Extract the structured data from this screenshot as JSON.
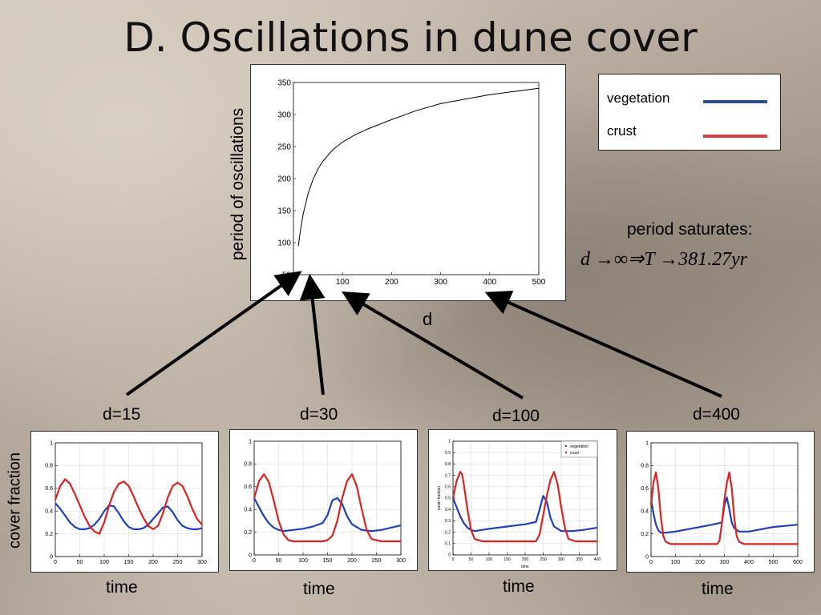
{
  "title": "D. Oscillations in dune cover",
  "colors": {
    "vegetation": "#1f3fbf",
    "crust": "#dd2222",
    "main_curve": "#000000"
  },
  "legend": {
    "items": [
      {
        "label": "vegetation",
        "color": "#2a4a9a"
      },
      {
        "label": "crust",
        "color": "#cc4444"
      }
    ]
  },
  "annotation": {
    "line1": "period saturates:",
    "line2": "d →∞⇒T →381.27yr"
  },
  "main_chart": {
    "type": "line",
    "xlabel": "d",
    "ylabel": "period of oscillations",
    "xlim": [
      0,
      500
    ],
    "ylim": [
      50,
      350
    ],
    "xticks": [
      100,
      200,
      300,
      400,
      500
    ],
    "yticks": [
      50,
      100,
      150,
      200,
      250,
      300,
      350
    ],
    "x": [
      10,
      15,
      20,
      30,
      40,
      50,
      60,
      80,
      100,
      125,
      150,
      200,
      250,
      300,
      350,
      400,
      450,
      500
    ],
    "y": [
      95,
      123,
      145,
      177,
      199,
      215,
      227,
      245,
      257,
      268,
      277,
      292,
      306,
      317,
      324,
      331,
      336,
      341
    ]
  },
  "panels": [
    {
      "label": "d=15",
      "xlabel": "time",
      "xlim": [
        0,
        300
      ],
      "xticks": [
        0,
        50,
        100,
        150,
        200,
        250,
        300
      ],
      "yticks": [
        0,
        0.2,
        0.4,
        0.6,
        0.8,
        1
      ],
      "small_legend": false,
      "series": [
        {
          "name": "vegetation",
          "x": [
            0,
            10,
            20,
            30,
            40,
            50,
            60,
            70,
            80,
            90,
            100,
            110,
            120,
            130,
            140,
            150,
            160,
            170,
            180,
            190,
            200,
            210,
            220,
            230,
            240,
            250,
            260,
            270,
            280,
            290,
            300
          ],
          "y": [
            0.47,
            0.42,
            0.36,
            0.3,
            0.26,
            0.24,
            0.24,
            0.25,
            0.28,
            0.33,
            0.4,
            0.45,
            0.44,
            0.38,
            0.31,
            0.26,
            0.24,
            0.24,
            0.25,
            0.28,
            0.33,
            0.38,
            0.43,
            0.44,
            0.39,
            0.32,
            0.27,
            0.25,
            0.24,
            0.24,
            0.25
          ]
        },
        {
          "name": "crust",
          "x": [
            0,
            10,
            20,
            30,
            40,
            50,
            60,
            70,
            80,
            90,
            100,
            110,
            120,
            130,
            140,
            150,
            160,
            170,
            180,
            190,
            200,
            210,
            220,
            230,
            240,
            250,
            260,
            270,
            280,
            290,
            300
          ],
          "y": [
            0.5,
            0.62,
            0.68,
            0.64,
            0.55,
            0.45,
            0.35,
            0.27,
            0.22,
            0.2,
            0.3,
            0.45,
            0.57,
            0.64,
            0.66,
            0.62,
            0.53,
            0.43,
            0.34,
            0.27,
            0.24,
            0.27,
            0.38,
            0.52,
            0.62,
            0.65,
            0.62,
            0.53,
            0.42,
            0.33,
            0.28
          ]
        }
      ]
    },
    {
      "label": "d=30",
      "xlabel": "time",
      "xlim": [
        0,
        300
      ],
      "xticks": [
        0,
        50,
        100,
        150,
        200,
        250,
        300
      ],
      "yticks": [
        0,
        0.2,
        0.4,
        0.6,
        0.8,
        1
      ],
      "small_legend": false,
      "series": [
        {
          "name": "vegetation",
          "x": [
            0,
            10,
            20,
            30,
            40,
            50,
            60,
            80,
            100,
            120,
            140,
            150,
            160,
            170,
            180,
            190,
            200,
            220,
            240,
            260,
            280,
            300
          ],
          "y": [
            0.5,
            0.42,
            0.34,
            0.28,
            0.24,
            0.22,
            0.21,
            0.22,
            0.23,
            0.25,
            0.28,
            0.35,
            0.48,
            0.5,
            0.45,
            0.34,
            0.27,
            0.22,
            0.21,
            0.22,
            0.24,
            0.26
          ]
        },
        {
          "name": "crust",
          "x": [
            0,
            10,
            20,
            30,
            40,
            50,
            60,
            70,
            80,
            100,
            120,
            140,
            150,
            160,
            170,
            180,
            190,
            200,
            210,
            220,
            230,
            240,
            260,
            280,
            300
          ],
          "y": [
            0.5,
            0.65,
            0.71,
            0.64,
            0.48,
            0.3,
            0.18,
            0.13,
            0.12,
            0.12,
            0.12,
            0.12,
            0.13,
            0.17,
            0.3,
            0.5,
            0.65,
            0.71,
            0.6,
            0.4,
            0.22,
            0.14,
            0.12,
            0.12,
            0.12
          ]
        }
      ]
    },
    {
      "label": "d=100",
      "xlabel": "time",
      "xlim": [
        0,
        400
      ],
      "xticks": [
        0,
        50,
        100,
        150,
        200,
        250,
        300,
        350,
        400
      ],
      "yticks": [
        0,
        0.1,
        0.2,
        0.3,
        0.4,
        0.5,
        0.6,
        0.7,
        0.8,
        0.9,
        1
      ],
      "small_legend": true,
      "legend_items": [
        "vegetation",
        "crust"
      ],
      "ylabel_small": "cover fraction",
      "series": [
        {
          "name": "vegetation",
          "x": [
            0,
            10,
            20,
            30,
            40,
            50,
            60,
            80,
            100,
            150,
            200,
            230,
            240,
            250,
            260,
            270,
            280,
            300,
            330,
            360,
            400
          ],
          "y": [
            0.5,
            0.42,
            0.34,
            0.28,
            0.24,
            0.22,
            0.21,
            0.22,
            0.23,
            0.25,
            0.27,
            0.29,
            0.4,
            0.52,
            0.47,
            0.33,
            0.25,
            0.21,
            0.21,
            0.22,
            0.24
          ]
        },
        {
          "name": "crust",
          "x": [
            0,
            10,
            20,
            25,
            30,
            40,
            50,
            60,
            80,
            120,
            180,
            230,
            240,
            250,
            260,
            270,
            280,
            290,
            300,
            310,
            320,
            340,
            370,
            400
          ],
          "y": [
            0.5,
            0.65,
            0.73,
            0.71,
            0.62,
            0.4,
            0.22,
            0.14,
            0.12,
            0.12,
            0.12,
            0.12,
            0.18,
            0.35,
            0.52,
            0.66,
            0.73,
            0.62,
            0.42,
            0.24,
            0.14,
            0.12,
            0.12,
            0.12
          ]
        }
      ]
    },
    {
      "label": "d=400",
      "xlabel": "time",
      "xlim": [
        0,
        600
      ],
      "xticks": [
        0,
        100,
        200,
        300,
        400,
        500,
        600
      ],
      "yticks": [
        0,
        0.2,
        0.4,
        0.6,
        0.8,
        1
      ],
      "small_legend": false,
      "series": [
        {
          "name": "vegetation",
          "x": [
            0,
            10,
            20,
            30,
            40,
            60,
            100,
            150,
            200,
            250,
            290,
            300,
            310,
            320,
            330,
            340,
            360,
            400,
            450,
            500,
            550,
            600
          ],
          "y": [
            0.5,
            0.38,
            0.28,
            0.23,
            0.21,
            0.21,
            0.22,
            0.24,
            0.26,
            0.28,
            0.3,
            0.45,
            0.52,
            0.42,
            0.3,
            0.25,
            0.22,
            0.22,
            0.24,
            0.26,
            0.27,
            0.28
          ]
        },
        {
          "name": "crust",
          "x": [
            0,
            10,
            20,
            30,
            40,
            50,
            60,
            80,
            100,
            200,
            270,
            280,
            290,
            300,
            310,
            320,
            330,
            340,
            350,
            360,
            380,
            400,
            500,
            600
          ],
          "y": [
            0.45,
            0.65,
            0.74,
            0.6,
            0.35,
            0.18,
            0.13,
            0.11,
            0.11,
            0.11,
            0.11,
            0.14,
            0.3,
            0.5,
            0.65,
            0.74,
            0.6,
            0.35,
            0.18,
            0.13,
            0.11,
            0.11,
            0.11,
            0.11
          ]
        }
      ]
    }
  ],
  "small_ylabel": "cover fraction"
}
